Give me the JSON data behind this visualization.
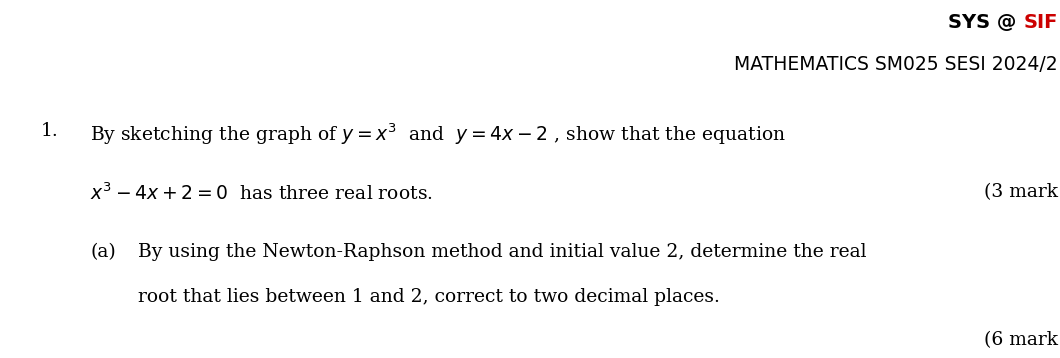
{
  "header_line1_black": "SYS @ ",
  "header_line1_red": "SIF",
  "header_line2": "MATHEMATICS SM025 SESI 2024/2",
  "q1_prefix": "1.",
  "q1_line1": "By sketching the graph of $y = x^3$  and  $y = 4x - 2$ , show that the equation",
  "q1_line2_math": "$x^3 - 4x + 2 = 0$  has three real roots.",
  "q1_marks": "(3 mark",
  "qa_prefix": "(a)",
  "qa_line1": "By using the Newton-Raphson method and initial value 2, determine the real",
  "qa_line2": "root that lies between 1 and 2, correct to two decimal places.",
  "qa_marks": "(6 mark",
  "bg_color": "#ffffff",
  "text_color": "#000000",
  "red_color": "#cc0000",
  "header_fontsize": 14,
  "body_fontsize": 13.5,
  "fig_width": 10.6,
  "fig_height": 3.58
}
